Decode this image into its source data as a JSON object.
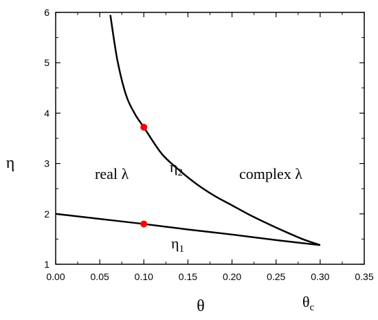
{
  "chart_data": {
    "type": "line",
    "xlabel": "θ",
    "ylabel": "η",
    "xlim": [
      0,
      0.35
    ],
    "ylim": [
      1,
      6
    ],
    "x_ticks": [
      "0.00",
      "0.05",
      "0.10",
      "0.15",
      "0.20",
      "0.25",
      "0.30",
      "0.35"
    ],
    "y_ticks": [
      "1",
      "2",
      "3",
      "4",
      "5",
      "6"
    ],
    "grid": false,
    "legend": "none",
    "series": [
      {
        "label_main": "η",
        "label_sub": "2",
        "color": "#000000",
        "x": [
          0.062,
          0.07,
          0.08,
          0.09,
          0.1,
          0.12,
          0.14,
          0.16,
          0.18,
          0.2,
          0.22,
          0.24,
          0.26,
          0.28,
          0.3
        ],
        "y": [
          5.95,
          5.05,
          4.35,
          3.98,
          3.72,
          3.2,
          2.87,
          2.59,
          2.36,
          2.17,
          1.98,
          1.81,
          1.65,
          1.5,
          1.38
        ]
      },
      {
        "label_main": "η",
        "label_sub": "1",
        "color": "#000000",
        "x": [
          0.0,
          0.05,
          0.1,
          0.15,
          0.2,
          0.25,
          0.3
        ],
        "y": [
          2.0,
          1.9,
          1.8,
          1.69,
          1.59,
          1.48,
          1.38
        ]
      }
    ],
    "points": [
      {
        "x": 0.1,
        "y": 3.72,
        "color": "#ff0000"
      },
      {
        "x": 0.1,
        "y": 1.8,
        "color": "#ff0000"
      }
    ],
    "annotations": {
      "real": "real λ",
      "complex": "complex λ",
      "theta_c_main": "θ",
      "theta_c_sub": "c"
    }
  }
}
